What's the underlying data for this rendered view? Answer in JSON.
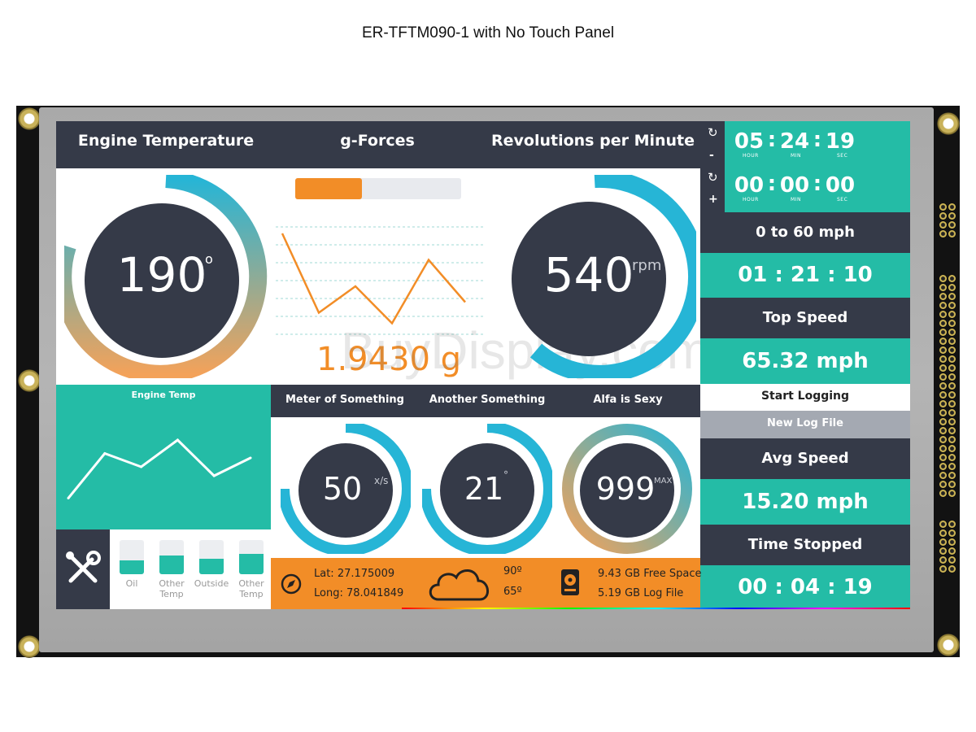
{
  "caption": "ER-TFTM090-1 with No Touch Panel",
  "colors": {
    "teal": "#24bca6",
    "dark": "#353a48",
    "orange": "#f28d27",
    "cyan": "#26b5d6"
  },
  "header": {
    "engine_temperature": "Engine Temperature",
    "g_forces": "g-Forces",
    "rpm": "Revolutions per Minute"
  },
  "engine_gauge": {
    "value": "190",
    "unit": "o"
  },
  "rpm_gauge": {
    "value": "540",
    "unit": "rpm"
  },
  "gforce": {
    "value": "1.9430 g",
    "bar_fraction": 0.4,
    "line_points": [
      0.1,
      0.85,
      0.6,
      0.95,
      0.35,
      0.75
    ]
  },
  "watermark": "BuyDisplay.com",
  "stopwatch": {
    "reset_icon": "reset-icon",
    "minus_label": "-",
    "plus_label": "+",
    "time1": {
      "h": "05",
      "m": "24",
      "s": "19"
    },
    "time2": {
      "h": "00",
      "m": "00",
      "s": "00"
    },
    "hour_label": "HOUR",
    "min_label": "MIN",
    "sec_label": "SEC",
    "colon": ":"
  },
  "zero_to_sixty": {
    "label": "0 to 60 mph",
    "value": "01 : 21 : 10"
  },
  "top_speed": {
    "label": "Top Speed",
    "value": "65.32 mph"
  },
  "buttons": {
    "start_logging": "Start Logging",
    "new_log_file": "New Log File"
  },
  "avg_speed": {
    "label": "Avg Speed",
    "value": "15.20 mph"
  },
  "time_stopped": {
    "label": "Time Stopped",
    "value": "00 : 04 : 19"
  },
  "engine_temp_chart": {
    "title": "Engine Temp"
  },
  "chart_data": {
    "type": "line",
    "title": "Engine Temp",
    "series": [
      {
        "values": [
          0.15,
          0.65,
          0.5,
          0.8,
          0.4,
          0.6
        ]
      }
    ]
  },
  "mid_headers": {
    "a": "Meter of Something",
    "b": "Another Something",
    "c": "Alfa is Sexy"
  },
  "small_gauges": [
    {
      "value": "50",
      "unit": "x/s"
    },
    {
      "value": "21",
      "unit": "°"
    },
    {
      "value": "999",
      "unit": "MAX"
    }
  ],
  "levels": [
    {
      "label": "Oil",
      "fill": 0.4
    },
    {
      "label": "Other\nTemp",
      "fill": 0.55
    },
    {
      "label": "Outside",
      "fill": 0.45
    },
    {
      "label": "Other\nTemp",
      "fill": 0.6
    }
  ],
  "info": {
    "lat": "Lat: 27.175009",
    "long": "Long: 78.041849",
    "temp_high": "90º",
    "temp_low": "65º",
    "free_space": "9.43 GB Free Space",
    "log_file": "5.19 GB Log File"
  }
}
